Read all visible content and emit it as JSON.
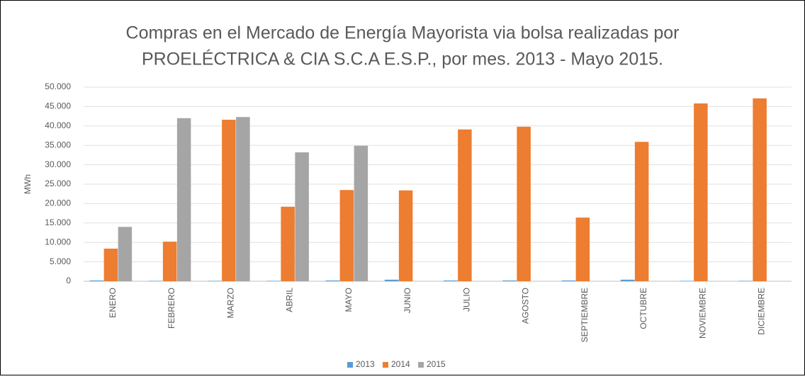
{
  "chart_data": {
    "type": "bar",
    "title": [
      "Compras en el Mercado de Energía Mayorista via bolsa realizadas por",
      "PROELÉCTRICA & CIA S.C.A E.S.P., por mes. 2013 - Mayo 2015."
    ],
    "y_label": "MWh",
    "categories": [
      "ENERO",
      "FEBRERO",
      "MARZO",
      "ABRIL",
      "MAYO",
      "JUNIO",
      "JULIO",
      "AGOSTO",
      "SEPTIEMBRE",
      "OCTUBRE",
      "NOVIEMBRE",
      "DICIEMBRE"
    ],
    "series": [
      {
        "name": "2013",
        "color": "#5b9bd5",
        "values": [
          200,
          100,
          100,
          100,
          200,
          400,
          200,
          200,
          200,
          400,
          100,
          100
        ]
      },
      {
        "name": "2014",
        "color": "#ed7d31",
        "values": [
          8400,
          10200,
          41600,
          19200,
          23500,
          23400,
          39100,
          39800,
          16400,
          35900,
          45800,
          47100
        ]
      },
      {
        "name": "2015",
        "color": "#a5a5a5",
        "values": [
          14000,
          42000,
          42300,
          33200,
          34900,
          null,
          null,
          null,
          null,
          null,
          null,
          null
        ]
      }
    ],
    "ylim": [
      0,
      50000
    ],
    "yticks": [
      0,
      {
        "value": 5000,
        "label": "5.000"
      },
      {
        "value": 10000,
        "label": "10.000"
      },
      {
        "value": 15000,
        "label": "15.000"
      },
      {
        "value": 20000,
        "label": "20.000"
      },
      {
        "value": 25000,
        "label": "25.000"
      },
      {
        "value": 30000,
        "label": "30.000"
      },
      {
        "value": 35000,
        "label": "35.000"
      },
      {
        "value": 40000,
        "label": "40.000"
      },
      {
        "value": 45000,
        "label": "45.000"
      },
      {
        "value": 50000,
        "label": "50.000"
      }
    ],
    "grid": true,
    "legend": "bottom"
  }
}
